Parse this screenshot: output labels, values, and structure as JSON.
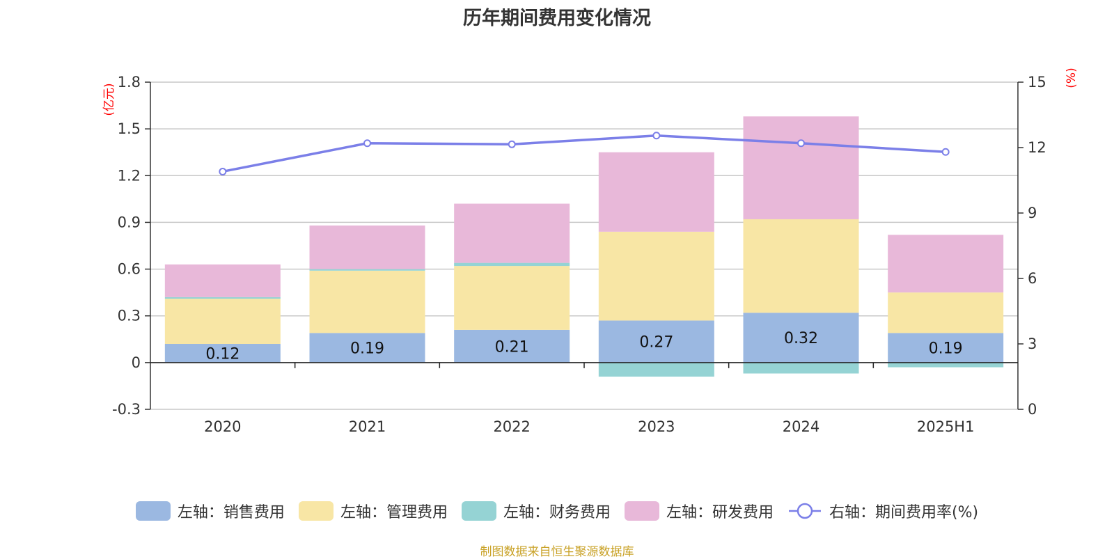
{
  "title": "历年期间费用变化情况",
  "source": "制图数据来自恒生聚源数据库",
  "chart_data": {
    "type": "bar",
    "stacked": true,
    "categories": [
      "2020",
      "2021",
      "2022",
      "2023",
      "2024",
      "2025H1"
    ],
    "left_axis": {
      "unit": "(亿元)",
      "ylim": [
        -0.3,
        1.8
      ],
      "ticks": [
        "-0.3",
        "0",
        "0.3",
        "0.6",
        "0.9",
        "1.2",
        "1.5",
        "1.8"
      ],
      "tick_values": [
        -0.3,
        0,
        0.3,
        0.6,
        0.9,
        1.2,
        1.5,
        1.8
      ]
    },
    "right_axis": {
      "unit": "(%)",
      "ylim": [
        0,
        15
      ],
      "ticks": [
        "0",
        "3",
        "6",
        "9",
        "12",
        "15"
      ],
      "tick_values": [
        0,
        3,
        6,
        9,
        12,
        15
      ]
    },
    "series": [
      {
        "name": "左轴：销售费用",
        "type": "bar",
        "color": "#9bb8e1",
        "values": [
          0.12,
          0.19,
          0.21,
          0.27,
          0.32,
          0.19
        ],
        "labels": [
          "0.12",
          "0.19",
          "0.21",
          "0.27",
          "0.32",
          "0.19"
        ]
      },
      {
        "name": "左轴：管理费用",
        "type": "bar",
        "color": "#f8e6a5",
        "values": [
          0.29,
          0.4,
          0.41,
          0.57,
          0.6,
          0.26
        ]
      },
      {
        "name": "左轴：财务费用",
        "type": "bar",
        "color": "#95d3d4",
        "values": [
          0.01,
          0.01,
          0.02,
          -0.09,
          -0.07,
          -0.03
        ]
      },
      {
        "name": "左轴：研发费用",
        "type": "bar",
        "color": "#e8b8d9",
        "values": [
          0.21,
          0.28,
          0.38,
          0.51,
          0.66,
          0.37
        ]
      },
      {
        "name": "右轴：期间费用率(%)",
        "type": "line",
        "axis": "right",
        "color": "#7b7fe8",
        "values": [
          10.9,
          12.2,
          12.15,
          12.55,
          12.2,
          11.8
        ]
      }
    ],
    "legend_position": "bottom",
    "grid": true
  }
}
